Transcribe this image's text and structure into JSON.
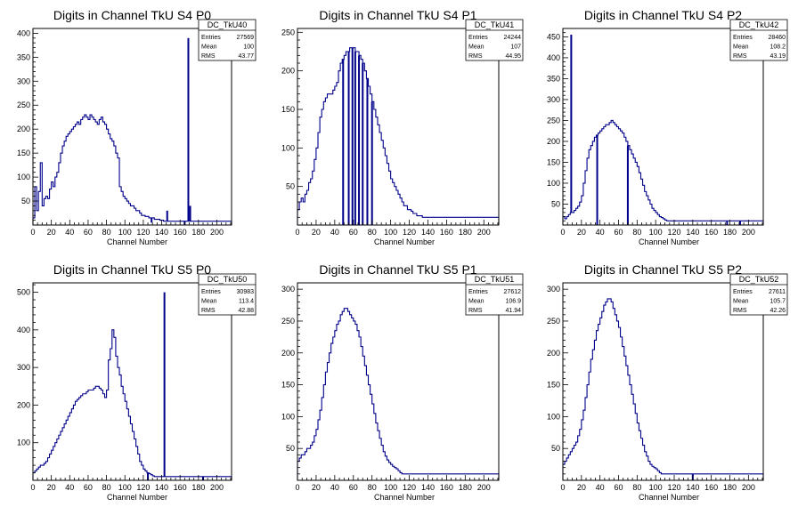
{
  "page": {
    "background": "#ffffff",
    "line_color": "#00008b"
  },
  "chart_data": [
    {
      "type": "histogram",
      "title": "Digits in Channel TkU S4 P0",
      "xlabel": "Channel Number",
      "xlim": [
        0,
        216
      ],
      "ylim": [
        0,
        410
      ],
      "xticks": [
        0,
        20,
        40,
        60,
        80,
        100,
        120,
        140,
        160,
        180,
        200
      ],
      "yticks": [
        50,
        100,
        150,
        200,
        250,
        300,
        350,
        400
      ],
      "stats": {
        "name": "DC_TkU40",
        "rows": [
          [
            "Entries",
            "27569"
          ],
          [
            "Mean",
            "100"
          ],
          [
            "RMS",
            "43.77"
          ]
        ]
      },
      "bin_width": 2,
      "values": [
        15,
        80,
        30,
        70,
        130,
        40,
        55,
        60,
        55,
        75,
        90,
        80,
        100,
        110,
        130,
        150,
        165,
        175,
        185,
        190,
        195,
        200,
        205,
        210,
        215,
        210,
        220,
        225,
        230,
        225,
        220,
        230,
        225,
        220,
        215,
        210,
        220,
        225,
        215,
        210,
        200,
        190,
        180,
        175,
        165,
        150,
        140,
        80,
        70,
        60,
        55,
        50,
        45,
        40,
        40,
        35,
        30,
        30,
        25,
        20,
        20,
        18,
        18,
        15,
        15,
        15,
        12,
        12,
        12,
        10,
        10,
        8,
        8,
        8,
        8,
        8,
        8,
        8,
        8,
        8,
        8,
        8,
        8,
        8,
        8,
        8,
        8,
        8,
        8,
        8,
        8,
        8,
        8,
        8,
        8,
        8,
        8,
        8,
        8,
        8,
        8,
        8,
        8,
        8,
        8,
        8,
        8,
        8
      ],
      "spikes": [
        [
          129,
          5
        ],
        [
          146,
          30
        ],
        [
          165,
          0
        ],
        [
          169,
          390
        ],
        [
          171,
          40
        ]
      ]
    },
    {
      "type": "histogram",
      "title": "Digits in Channel TkU S4 P1",
      "xlabel": "Channel Number",
      "xlim": [
        0,
        216
      ],
      "ylim": [
        0,
        255
      ],
      "xticks": [
        0,
        20,
        40,
        60,
        80,
        100,
        120,
        140,
        160,
        180,
        200
      ],
      "yticks": [
        50,
        100,
        150,
        200,
        250
      ],
      "stats": {
        "name": "DC_TkU41",
        "rows": [
          [
            "Entries",
            "24244"
          ],
          [
            "Mean",
            "107"
          ],
          [
            "RMS",
            "44.95"
          ]
        ]
      },
      "bin_width": 2,
      "values": [
        20,
        30,
        35,
        30,
        40,
        45,
        55,
        60,
        70,
        85,
        100,
        120,
        140,
        150,
        160,
        165,
        170,
        170,
        170,
        175,
        180,
        185,
        200,
        210,
        215,
        220,
        225,
        225,
        230,
        230,
        230,
        225,
        225,
        220,
        215,
        210,
        200,
        190,
        180,
        170,
        160,
        150,
        140,
        130,
        120,
        110,
        100,
        90,
        80,
        70,
        60,
        55,
        50,
        45,
        40,
        35,
        30,
        25,
        25,
        20,
        20,
        18,
        15,
        15,
        12,
        12,
        12,
        10,
        10,
        10,
        10,
        10,
        10,
        10,
        10,
        10,
        10,
        10,
        10,
        10,
        10,
        10,
        10,
        10,
        10,
        10,
        10,
        10,
        10,
        10,
        10,
        10,
        10,
        10,
        10,
        10,
        10,
        10,
        10,
        10,
        10,
        10,
        10,
        10,
        10,
        10,
        10,
        10
      ],
      "spikes": [
        [
          49,
          0
        ],
        [
          55,
          0
        ],
        [
          59,
          0
        ],
        [
          62,
          0
        ],
        [
          66,
          0
        ],
        [
          70,
          0
        ],
        [
          75,
          0
        ],
        [
          80,
          0
        ]
      ]
    },
    {
      "type": "histogram",
      "title": "Digits in Channel TkU S4 P2",
      "xlabel": "Channel Number",
      "xlim": [
        0,
        216
      ],
      "ylim": [
        0,
        470
      ],
      "xticks": [
        0,
        20,
        40,
        60,
        80,
        100,
        120,
        140,
        160,
        180,
        200
      ],
      "yticks": [
        50,
        100,
        150,
        200,
        250,
        300,
        350,
        400,
        450
      ],
      "stats": {
        "name": "DC_TkU42",
        "rows": [
          [
            "Entries",
            "28460"
          ],
          [
            "Mean",
            "108.2"
          ],
          [
            "RMS",
            "43.19"
          ]
        ]
      },
      "bin_width": 2,
      "values": [
        20,
        15,
        20,
        25,
        30,
        30,
        35,
        40,
        45,
        55,
        70,
        100,
        130,
        160,
        180,
        190,
        200,
        210,
        215,
        220,
        225,
        230,
        235,
        240,
        240,
        245,
        250,
        245,
        240,
        235,
        230,
        225,
        220,
        210,
        200,
        190,
        180,
        170,
        160,
        150,
        140,
        125,
        110,
        95,
        80,
        70,
        60,
        50,
        40,
        35,
        30,
        25,
        20,
        18,
        15,
        12,
        10,
        10,
        10,
        10,
        10,
        10,
        10,
        10,
        10,
        10,
        10,
        10,
        10,
        10,
        10,
        10,
        10,
        10,
        10,
        10,
        10,
        10,
        10,
        10,
        10,
        10,
        10,
        10,
        10,
        10,
        10,
        10,
        10,
        10,
        10,
        10,
        10,
        10,
        10,
        10,
        10,
        10,
        10,
        10,
        10,
        10,
        10,
        10,
        10,
        10,
        10,
        10
      ],
      "spikes": [
        [
          9,
          455
        ],
        [
          37,
          0
        ],
        [
          70,
          0
        ],
        [
          177,
          0
        ],
        [
          191,
          0
        ]
      ]
    },
    {
      "type": "histogram",
      "title": "Digits in Channel TkU S5 P0",
      "xlabel": "Channel Number",
      "xlim": [
        0,
        216
      ],
      "ylim": [
        0,
        525
      ],
      "xticks": [
        0,
        20,
        40,
        60,
        80,
        100,
        120,
        140,
        160,
        180,
        200
      ],
      "yticks": [
        100,
        200,
        300,
        400,
        500
      ],
      "stats": {
        "name": "DC_TkU50",
        "rows": [
          [
            "Entries",
            "30983"
          ],
          [
            "Mean",
            "113.4"
          ],
          [
            "RMS",
            "42.88"
          ]
        ]
      },
      "bin_width": 2,
      "values": [
        20,
        25,
        30,
        35,
        40,
        40,
        45,
        50,
        60,
        70,
        80,
        90,
        100,
        110,
        120,
        130,
        140,
        150,
        160,
        170,
        180,
        190,
        200,
        210,
        215,
        220,
        225,
        230,
        230,
        235,
        240,
        240,
        240,
        245,
        250,
        250,
        245,
        240,
        230,
        220,
        240,
        320,
        350,
        400,
        380,
        330,
        300,
        280,
        250,
        230,
        210,
        190,
        170,
        150,
        130,
        110,
        90,
        70,
        50,
        40,
        30,
        25,
        20,
        18,
        15,
        12,
        10,
        10,
        10,
        10,
        10,
        10,
        10,
        10,
        10,
        10,
        10,
        10,
        10,
        10,
        10,
        10,
        10,
        10,
        10,
        10,
        10,
        10,
        10,
        10,
        10,
        10,
        10,
        10,
        10,
        10,
        10,
        10,
        10,
        10,
        10,
        10,
        10,
        10,
        10,
        10,
        10,
        10
      ],
      "spikes": [
        [
          125,
          0
        ],
        [
          143,
          500
        ],
        [
          185,
          0
        ]
      ]
    },
    {
      "type": "histogram",
      "title": "Digits in Channel TkU S5 P1",
      "xlabel": "Channel Number",
      "xlim": [
        0,
        216
      ],
      "ylim": [
        0,
        310
      ],
      "xticks": [
        0,
        20,
        40,
        60,
        80,
        100,
        120,
        140,
        160,
        180,
        200
      ],
      "yticks": [
        50,
        100,
        150,
        200,
        250,
        300
      ],
      "stats": {
        "name": "DC_TkU51",
        "rows": [
          [
            "Entries",
            "27612"
          ],
          [
            "Mean",
            "106.9"
          ],
          [
            "RMS",
            "41.94"
          ]
        ]
      },
      "bin_width": 2,
      "values": [
        30,
        35,
        40,
        40,
        45,
        50,
        50,
        55,
        60,
        70,
        80,
        95,
        110,
        130,
        150,
        170,
        185,
        200,
        215,
        225,
        235,
        245,
        250,
        260,
        265,
        270,
        270,
        265,
        260,
        255,
        250,
        245,
        235,
        225,
        210,
        195,
        180,
        165,
        150,
        135,
        120,
        105,
        90,
        78,
        66,
        55,
        45,
        38,
        32,
        28,
        25,
        22,
        20,
        18,
        15,
        12,
        10,
        10,
        10,
        10,
        10,
        10,
        10,
        10,
        10,
        10,
        10,
        10,
        10,
        10,
        10,
        10,
        10,
        10,
        10,
        10,
        10,
        10,
        10,
        10,
        10,
        10,
        10,
        10,
        10,
        10,
        10,
        10,
        10,
        10,
        10,
        10,
        10,
        10,
        10,
        10,
        10,
        10,
        10,
        10,
        10,
        10,
        10,
        10,
        10,
        10,
        10,
        10
      ],
      "spikes": []
    },
    {
      "type": "histogram",
      "title": "Digits in Channel TkU S5 P2",
      "xlabel": "Channel Number",
      "xlim": [
        0,
        216
      ],
      "ylim": [
        0,
        310
      ],
      "xticks": [
        0,
        20,
        40,
        60,
        80,
        100,
        120,
        140,
        160,
        180,
        200
      ],
      "yticks": [
        50,
        100,
        150,
        200,
        250,
        300
      ],
      "stats": {
        "name": "DC_TkU52",
        "rows": [
          [
            "Entries",
            "27611"
          ],
          [
            "Mean",
            "105.7"
          ],
          [
            "RMS",
            "42.26"
          ]
        ]
      },
      "bin_width": 2,
      "values": [
        25,
        30,
        35,
        40,
        45,
        50,
        55,
        60,
        70,
        80,
        95,
        110,
        130,
        150,
        170,
        190,
        205,
        220,
        235,
        245,
        255,
        265,
        275,
        280,
        285,
        285,
        280,
        270,
        260,
        250,
        240,
        225,
        210,
        195,
        180,
        165,
        150,
        135,
        120,
        105,
        90,
        78,
        66,
        55,
        45,
        38,
        30,
        25,
        22,
        20,
        18,
        15,
        12,
        10,
        10,
        10,
        10,
        10,
        10,
        10,
        10,
        10,
        10,
        10,
        10,
        10,
        10,
        10,
        10,
        10,
        10,
        10,
        10,
        10,
        10,
        10,
        10,
        10,
        10,
        10,
        10,
        10,
        10,
        10,
        10,
        10,
        10,
        10,
        10,
        10,
        10,
        10,
        10,
        10,
        10,
        10,
        10,
        10,
        10,
        10,
        10,
        10,
        10,
        10,
        10,
        10,
        10,
        10
      ],
      "spikes": [
        [
          140,
          0
        ]
      ]
    }
  ]
}
